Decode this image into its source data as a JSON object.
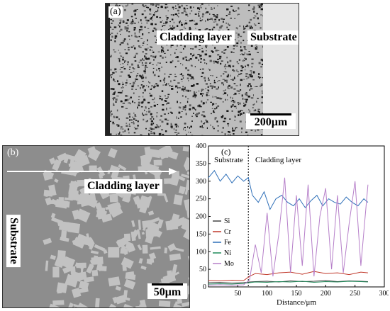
{
  "panel_a": {
    "label": "(a)",
    "cladding_label": "Cladding layer",
    "substrate_label": "Substrate",
    "scale_label": "200μm"
  },
  "panel_b": {
    "label": "(b)",
    "cladding_label": "Cladding layer",
    "substrate_label": "Substrate",
    "scale_label": "50μm"
  },
  "panel_c": {
    "label": "(c)",
    "substrate_label": "Substrate",
    "cladding_label": "Cladding layer"
  },
  "chart_data": {
    "type": "line",
    "title": "",
    "xlabel": "Distance/μm",
    "ylabel": "",
    "xlim": [
      0,
      300
    ],
    "ylim": [
      0,
      400
    ],
    "xticks": [
      50,
      100,
      150,
      200,
      250,
      300
    ],
    "yticks": [
      0,
      50,
      100,
      150,
      200,
      250,
      300,
      350,
      400
    ],
    "boundary_x": 68,
    "legend_position": "middle-left",
    "series": [
      {
        "name": "Si",
        "color": "#444444",
        "x": [
          0,
          20,
          40,
          60,
          70,
          80,
          100,
          120,
          140,
          160,
          180,
          200,
          220,
          240,
          260,
          272
        ],
        "values": [
          12,
          13,
          11,
          12,
          14,
          15,
          16,
          14,
          17,
          15,
          16,
          18,
          15,
          17,
          16,
          15
        ]
      },
      {
        "name": "Cr",
        "color": "#c0392b",
        "x": [
          0,
          20,
          40,
          60,
          70,
          80,
          100,
          120,
          140,
          160,
          180,
          200,
          220,
          240,
          260,
          272
        ],
        "values": [
          18,
          17,
          19,
          18,
          30,
          38,
          35,
          40,
          42,
          36,
          44,
          38,
          40,
          35,
          42,
          40
        ]
      },
      {
        "name": "Fe",
        "color": "#2e6fb8",
        "x": [
          0,
          10,
          20,
          30,
          40,
          50,
          60,
          68,
          75,
          85,
          95,
          105,
          115,
          125,
          135,
          145,
          155,
          165,
          175,
          185,
          195,
          205,
          215,
          225,
          235,
          245,
          255,
          265,
          272
        ],
        "values": [
          310,
          330,
          300,
          320,
          295,
          315,
          300,
          310,
          260,
          240,
          270,
          220,
          250,
          260,
          240,
          230,
          250,
          225,
          245,
          260,
          230,
          250,
          240,
          235,
          255,
          240,
          230,
          250,
          240
        ]
      },
      {
        "name": "Ni",
        "color": "#1f8a5a",
        "x": [
          0,
          20,
          40,
          60,
          70,
          80,
          100,
          120,
          140,
          160,
          180,
          200,
          220,
          240,
          260,
          272
        ],
        "values": [
          8,
          9,
          8,
          10,
          12,
          14,
          13,
          15,
          14,
          16,
          13,
          15,
          14,
          16,
          15,
          14
        ]
      },
      {
        "name": "Mo",
        "color": "#b67fc9",
        "x": [
          0,
          20,
          40,
          60,
          70,
          80,
          90,
          100,
          110,
          120,
          130,
          140,
          150,
          160,
          170,
          180,
          190,
          200,
          210,
          220,
          230,
          240,
          250,
          260,
          272
        ],
        "values": [
          5,
          6,
          5,
          6,
          20,
          120,
          40,
          210,
          30,
          150,
          310,
          40,
          260,
          60,
          290,
          30,
          200,
          280,
          50,
          260,
          40,
          180,
          300,
          60,
          290
        ]
      }
    ]
  },
  "colors": {
    "panel_a_background": "#c9c9c9",
    "panel_b_background": "#8d8d8d",
    "substrate_a": "#e6e6e6"
  }
}
